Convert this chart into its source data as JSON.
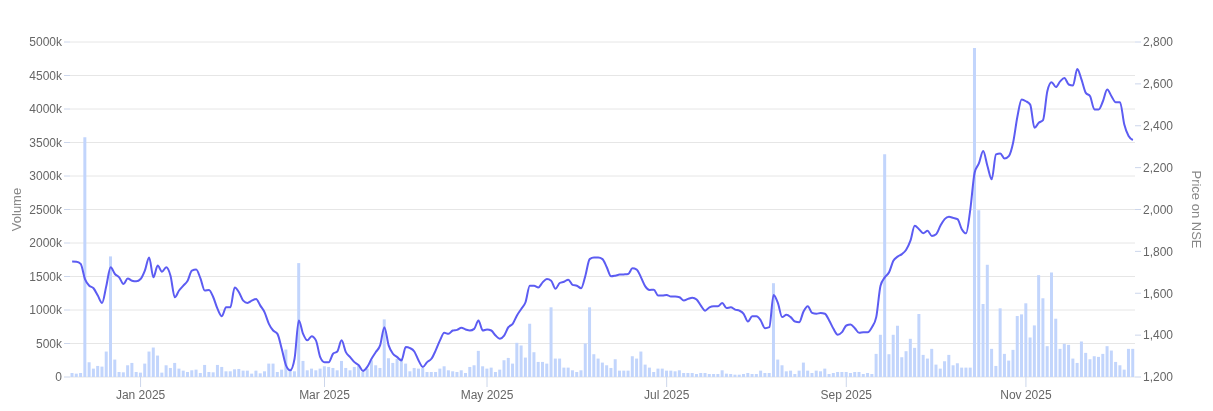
{
  "chart_data": {
    "type": "bar",
    "ylabel": "Volume",
    "y2label": "Price on NSE",
    "grid": "y",
    "legend": false,
    "marker": "none",
    "line_style": "solid",
    "categories": [
      null,
      null,
      null,
      null,
      null,
      null,
      null,
      null,
      null,
      null,
      null,
      null,
      null,
      null,
      null,
      null,
      "Jan 2025",
      null,
      null,
      null,
      null,
      null,
      null,
      null,
      null,
      null,
      null,
      null,
      null,
      null,
      null,
      null,
      null,
      null,
      null,
      null,
      null,
      null,
      null,
      null,
      null,
      null,
      null,
      null,
      null,
      null,
      null,
      null,
      null,
      null,
      null,
      null,
      null,
      null,
      null,
      null,
      null,
      null,
      null,
      "Mar 2025",
      null,
      null,
      null,
      null,
      null,
      null,
      null,
      null,
      null,
      null,
      null,
      null,
      null,
      null,
      null,
      null,
      null,
      null,
      null,
      null,
      null,
      null,
      null,
      null,
      null,
      null,
      null,
      null,
      null,
      null,
      null,
      null,
      null,
      null,
      null,
      null,
      null,
      "May 2025",
      null,
      null,
      null,
      null,
      null,
      null,
      null,
      null,
      null,
      null,
      null,
      null,
      null,
      null,
      null,
      null,
      null,
      null,
      null,
      null,
      null,
      null,
      null,
      null,
      null,
      null,
      null,
      null,
      null,
      null,
      null,
      null,
      null,
      null,
      null,
      null,
      null,
      null,
      null,
      null,
      null,
      "Jul 2025",
      null,
      null,
      null,
      null,
      null,
      null,
      null,
      null,
      null,
      null,
      null,
      null,
      null,
      null,
      null,
      null,
      null,
      null,
      null,
      null,
      null,
      null,
      null,
      null,
      null,
      null,
      null,
      null,
      null,
      null,
      null,
      null,
      null,
      null,
      null,
      null,
      null,
      null,
      null,
      null,
      null,
      "Sep 2025",
      null,
      null,
      null,
      null,
      null,
      null,
      null,
      null,
      null,
      null,
      null,
      null,
      null,
      null,
      null,
      null,
      null,
      null,
      null,
      null,
      null,
      null,
      null,
      null,
      null,
      null,
      null,
      null,
      null,
      null,
      null,
      null,
      null,
      null,
      null,
      null,
      null,
      null,
      null,
      null,
      null,
      "Nov 2025",
      null,
      null,
      null,
      null,
      null,
      null,
      null,
      null,
      null,
      null,
      null,
      null,
      null,
      null,
      null,
      null,
      null,
      null,
      null,
      null,
      null,
      null,
      null,
      null,
      null
    ],
    "ylim": [
      0,
      5000000
    ],
    "yticks": [
      {
        "value": 0,
        "label": "0"
      },
      {
        "value": 500000,
        "label": "500k"
      },
      {
        "value": 1000000,
        "label": "1000k"
      },
      {
        "value": 1500000,
        "label": "1500k"
      },
      {
        "value": 2000000,
        "label": "2000k"
      },
      {
        "value": 2500000,
        "label": "2500k"
      },
      {
        "value": 3000000,
        "label": "3000k"
      },
      {
        "value": 3500000,
        "label": "3500k"
      },
      {
        "value": 4000000,
        "label": "4000k"
      },
      {
        "value": 4500000,
        "label": "4500k"
      },
      {
        "value": 5000000,
        "label": "5000k"
      }
    ],
    "y2lim": [
      1200,
      2800
    ],
    "y2ticks": [
      {
        "value": 1200,
        "label": "1,200"
      },
      {
        "value": 1400,
        "label": "1,400"
      },
      {
        "value": 1600,
        "label": "1,600"
      },
      {
        "value": 1800,
        "label": "1,800"
      },
      {
        "value": 2000,
        "label": "2,000"
      },
      {
        "value": 2200,
        "label": "2,200"
      },
      {
        "value": 2400,
        "label": "2,400"
      },
      {
        "value": 2600,
        "label": "2,600"
      },
      {
        "value": 2800,
        "label": "2,800"
      }
    ],
    "series": [
      {
        "color": "#c2d5fc",
        "values": [
          60000,
          50000,
          60000,
          3580000,
          220000,
          125000,
          165000,
          155000,
          380000,
          1800000,
          260000,
          75000,
          70000,
          175000,
          210000,
          75000,
          65000,
          200000,
          380000,
          440000,
          320000,
          65000,
          175000,
          135000,
          210000,
          125000,
          95000,
          75000,
          100000,
          110000,
          60000,
          180000,
          75000,
          70000,
          180000,
          150000,
          85000,
          85000,
          115000,
          120000,
          95000,
          95000,
          50000,
          95000,
          55000,
          85000,
          200000,
          200000,
          75000,
          110000,
          410000,
          125000,
          85000,
          1700000,
          240000,
          100000,
          125000,
          100000,
          125000,
          160000,
          150000,
          135000,
          100000,
          240000,
          135000,
          100000,
          150000,
          165000,
          75000,
          125000,
          250000,
          175000,
          135000,
          860000,
          280000,
          210000,
          270000,
          280000,
          200000,
          85000,
          135000,
          125000,
          135000,
          75000,
          75000,
          75000,
          125000,
          160000,
          100000,
          85000,
          75000,
          100000,
          60000,
          150000,
          175000,
          390000,
          160000,
          125000,
          140000,
          75000,
          110000,
          250000,
          285000,
          200000,
          510000,
          470000,
          290000,
          795000,
          370000,
          225000,
          225000,
          200000,
          1040000,
          275000,
          275000,
          140000,
          140000,
          100000,
          75000,
          100000,
          500000,
          1040000,
          340000,
          275000,
          215000,
          175000,
          135000,
          265000,
          95000,
          95000,
          95000,
          310000,
          275000,
          380000,
          185000,
          140000,
          75000,
          125000,
          125000,
          95000,
          95000,
          85000,
          100000,
          60000,
          60000,
          60000,
          45000,
          60000,
          60000,
          45000,
          45000,
          45000,
          100000,
          50000,
          45000,
          35000,
          35000,
          45000,
          60000,
          45000,
          45000,
          95000,
          60000,
          60000,
          1400000,
          260000,
          175000,
          85000,
          95000,
          45000,
          95000,
          215000,
          95000,
          60000,
          95000,
          85000,
          125000,
          45000,
          60000,
          75000,
          75000,
          75000,
          60000,
          75000,
          75000,
          45000,
          60000,
          45000,
          345000,
          630000,
          3325000,
          340000,
          630000,
          765000,
          295000,
          385000,
          570000,
          435000,
          940000,
          330000,
          275000,
          420000,
          185000,
          125000,
          235000,
          330000,
          175000,
          205000,
          140000,
          140000,
          140000,
          4910000,
          2490000,
          1090000,
          1675000,
          420000,
          165000,
          1025000,
          345000,
          245000,
          405000,
          910000,
          935000,
          1100000,
          590000,
          770000,
          1520000,
          1175000,
          460000,
          1560000,
          870000,
          420000,
          495000,
          480000,
          275000,
          210000,
          530000,
          360000,
          265000,
          310000,
          300000,
          345000,
          460000,
          395000,
          225000,
          175000,
          110000,
          420000,
          420000
        ]
      },
      {
        "type": "line",
        "axis": "y2",
        "color": "#5c5cf2",
        "values": [
          1752,
          1751,
          1740,
          1668,
          1636,
          1624,
          1589,
          1554,
          1636,
          1724,
          1692,
          1676,
          1644,
          1671,
          1660,
          1657,
          1668,
          1708,
          1771,
          1676,
          1732,
          1703,
          1724,
          1684,
          1581,
          1613,
          1636,
          1660,
          1708,
          1713,
          1671,
          1613,
          1616,
          1581,
          1525,
          1490,
          1533,
          1533,
          1627,
          1605,
          1565,
          1554,
          1565,
          1573,
          1541,
          1509,
          1454,
          1422,
          1406,
          1335,
          1256,
          1232,
          1287,
          1470,
          1406,
          1375,
          1395,
          1375,
          1295,
          1271,
          1271,
          1311,
          1322,
          1375,
          1319,
          1295,
          1271,
          1256,
          1229,
          1248,
          1287,
          1319,
          1351,
          1438,
          1351,
          1311,
          1295,
          1279,
          1343,
          1338,
          1322,
          1279,
          1248,
          1271,
          1287,
          1327,
          1375,
          1411,
          1406,
          1422,
          1425,
          1435,
          1427,
          1422,
          1430,
          1470,
          1422,
          1427,
          1422,
          1398,
          1383,
          1398,
          1438,
          1454,
          1494,
          1525,
          1557,
          1636,
          1636,
          1628,
          1652,
          1668,
          1660,
          1621,
          1649,
          1655,
          1665,
          1640,
          1636,
          1624,
          1684,
          1763,
          1771,
          1771,
          1763,
          1724,
          1681,
          1684,
          1689,
          1690,
          1692,
          1719,
          1713,
          1676,
          1633,
          1616,
          1617,
          1589,
          1589,
          1592,
          1584,
          1584,
          1581,
          1565,
          1573,
          1579,
          1570,
          1541,
          1517,
          1533,
          1538,
          1538,
          1554,
          1529,
          1533,
          1522,
          1517,
          1502,
          1465,
          1490,
          1490,
          1470,
          1433,
          1438,
          1592,
          1554,
          1486,
          1497,
          1486,
          1465,
          1462,
          1513,
          1538,
          1506,
          1502,
          1506,
          1502,
          1470,
          1430,
          1402,
          1414,
          1446,
          1451,
          1433,
          1411,
          1414,
          1414,
          1438,
          1486,
          1636,
          1676,
          1700,
          1755,
          1775,
          1787,
          1808,
          1851,
          1922,
          1906,
          1887,
          1898,
          1874,
          1882,
          1922,
          1954,
          1965,
          1960,
          1954,
          1906,
          1886,
          2001,
          2176,
          2220,
          2279,
          2208,
          2144,
          2263,
          2268,
          2243,
          2255,
          2319,
          2443,
          2525,
          2517,
          2501,
          2390,
          2414,
          2427,
          2565,
          2608,
          2585,
          2612,
          2628,
          2597,
          2592,
          2671,
          2620,
          2557,
          2541,
          2478,
          2478,
          2517,
          2573,
          2541,
          2512,
          2512,
          2406,
          2351,
          2332
        ]
      }
    ]
  }
}
